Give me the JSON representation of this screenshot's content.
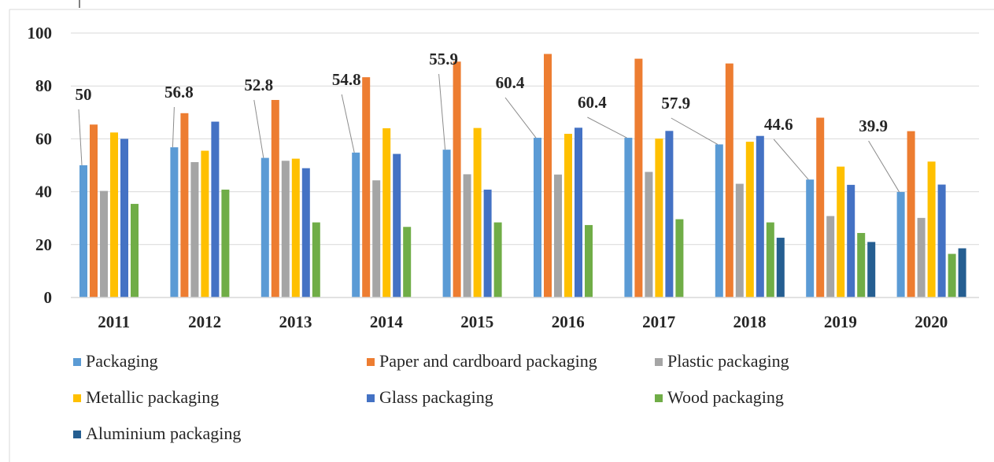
{
  "chart_data": {
    "type": "bar",
    "categories": [
      "2011",
      "2012",
      "2013",
      "2014",
      "2015",
      "2016",
      "2017",
      "2018",
      "2019",
      "2020"
    ],
    "ylim": [
      0,
      100
    ],
    "yticks": [
      "0",
      "20",
      "40",
      "60",
      "80",
      "100"
    ],
    "grid": true,
    "legend_position": "bottom",
    "series": [
      {
        "name": "Packaging",
        "color": "#5B9BD5",
        "values": [
          50,
          56.8,
          52.8,
          54.8,
          55.9,
          60.4,
          60.4,
          57.9,
          44.6,
          39.9
        ],
        "labels": [
          "50",
          "56.8",
          "52.8",
          "54.8",
          "55.9",
          "60.4",
          "60.4",
          "57.9",
          "44.6",
          "39.9"
        ]
      },
      {
        "name": "Paper and cardboard packaging",
        "color": "#ED7D31",
        "values": [
          65.4,
          69.7,
          74.7,
          83.3,
          89.2,
          92.1,
          90.3,
          88.5,
          68.0,
          62.9
        ]
      },
      {
        "name": "Plastic packaging",
        "color": "#A5A5A5",
        "values": [
          40.3,
          51.2,
          51.7,
          44.3,
          46.6,
          46.5,
          47.5,
          43.0,
          30.8,
          30.1
        ]
      },
      {
        "name": "Metallic packaging",
        "color": "#FFC000",
        "values": [
          62.4,
          55.5,
          52.5,
          64.0,
          64.1,
          61.9,
          60.1,
          58.9,
          49.5,
          51.4
        ]
      },
      {
        "name": "Glass packaging",
        "color": "#4472C4",
        "values": [
          60.0,
          66.5,
          48.9,
          54.3,
          40.8,
          64.2,
          63.0,
          61.1,
          42.6,
          42.7
        ]
      },
      {
        "name": "Wood packaging",
        "color": "#70AD47",
        "values": [
          35.4,
          40.8,
          28.4,
          26.7,
          28.4,
          27.4,
          29.6,
          28.4,
          24.4,
          16.5
        ]
      },
      {
        "name": "Aluminium packaging",
        "color": "#255E91",
        "values": [
          null,
          null,
          null,
          null,
          null,
          null,
          null,
          22.6,
          21.0,
          18.6
        ]
      }
    ]
  }
}
